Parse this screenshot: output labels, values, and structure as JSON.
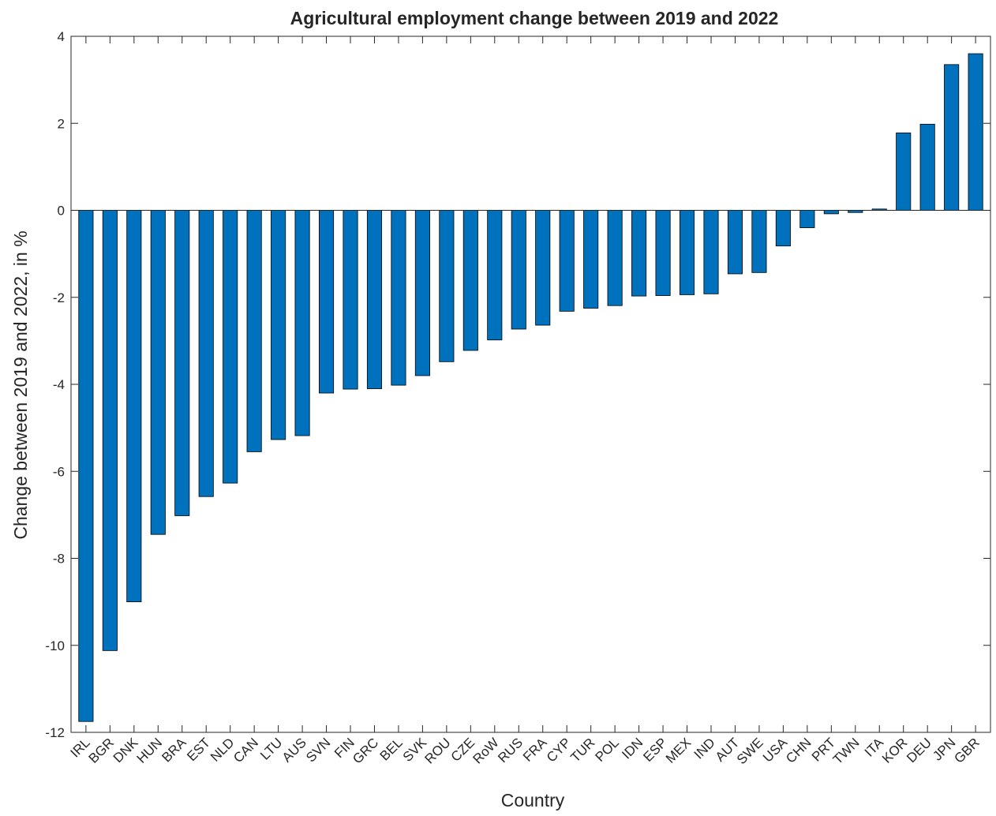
{
  "chart_data": {
    "type": "bar",
    "title": "Agricultural employment change between 2019 and 2022",
    "xlabel": "Country",
    "ylabel": "Change between 2019 and 2022, in %",
    "ylim": [
      -12,
      4
    ],
    "yticks": [
      "4",
      "2",
      "0",
      "-2",
      "-4",
      "-6",
      "-8",
      "-10",
      "-12"
    ],
    "ytick_values": [
      4,
      2,
      0,
      -2,
      -4,
      -6,
      -8,
      -10,
      -12
    ],
    "grid": false,
    "bar_color": "#0072BD",
    "categories": [
      "IRL",
      "BGR",
      "DNK",
      "HUN",
      "BRA",
      "EST",
      "NLD",
      "CAN",
      "LTU",
      "AUS",
      "SVN",
      "FIN",
      "GRC",
      "BEL",
      "SVK",
      "ROU",
      "CZE",
      "RoW",
      "RUS",
      "FRA",
      "CYP",
      "TUR",
      "POL",
      "IDN",
      "ESP",
      "MEX",
      "IND",
      "AUT",
      "SWE",
      "USA",
      "CHN",
      "PRT",
      "TWN",
      "ITA",
      "KOR",
      "DEU",
      "JPN",
      "GBR"
    ],
    "values": [
      -11.75,
      -10.12,
      -9.0,
      -7.45,
      -7.02,
      -6.58,
      -6.27,
      -5.55,
      -5.27,
      -5.18,
      -4.2,
      -4.11,
      -4.1,
      -4.02,
      -3.8,
      -3.48,
      -3.22,
      -2.98,
      -2.73,
      -2.64,
      -2.32,
      -2.25,
      -2.19,
      -1.97,
      -1.96,
      -1.94,
      -1.92,
      -1.46,
      -1.43,
      -0.82,
      -0.4,
      -0.08,
      -0.05,
      0.03,
      1.78,
      1.98,
      3.35,
      3.6
    ]
  }
}
